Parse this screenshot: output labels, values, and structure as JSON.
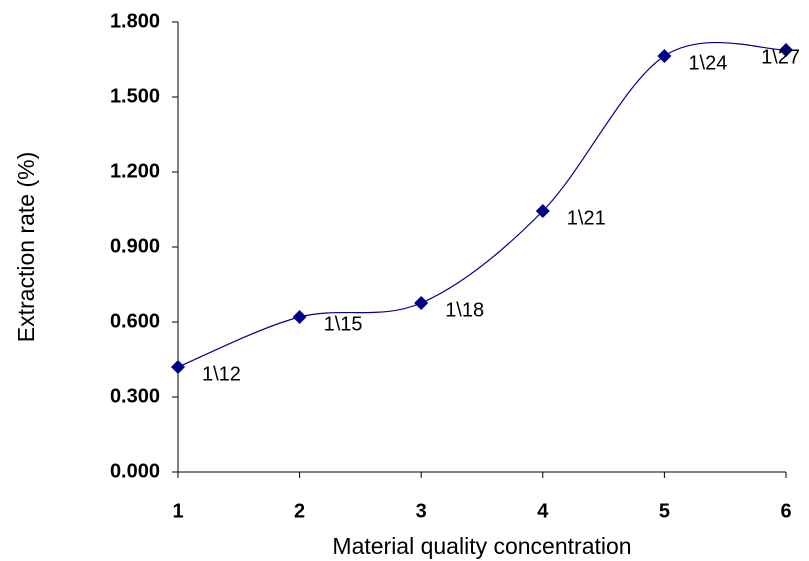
{
  "chart_data": {
    "type": "line",
    "x_label": "Material quality concentration",
    "y_label": "Extraction rate (%)",
    "x": [
      1,
      2,
      3,
      4,
      5,
      6
    ],
    "series": [
      {
        "color": "#00008b",
        "values": [
          0.42,
          0.62,
          0.676,
          1.044,
          1.664,
          1.688
        ]
      }
    ],
    "point_labels": [
      "1\\12",
      "1\\15",
      "1\\18",
      "1\\21",
      "1\\24",
      "1\\27"
    ],
    "smooth": true,
    "marker": "diamond",
    "xlim": [
      1,
      6
    ],
    "xticks": [
      1,
      2,
      3,
      4,
      5,
      6
    ],
    "ylim": [
      0,
      1.8
    ],
    "yticks": [
      {
        "value": 0,
        "label": "0.000"
      },
      {
        "value": 0.3,
        "label": "0.300"
      },
      {
        "value": 0.6,
        "label": "0.600"
      },
      {
        "value": 0.9,
        "label": "0.900"
      },
      {
        "value": 1.2,
        "label": "1.200"
      },
      {
        "value": 1.5,
        "label": "1.500"
      },
      {
        "value": 1.8,
        "label": "1.800"
      }
    ]
  }
}
